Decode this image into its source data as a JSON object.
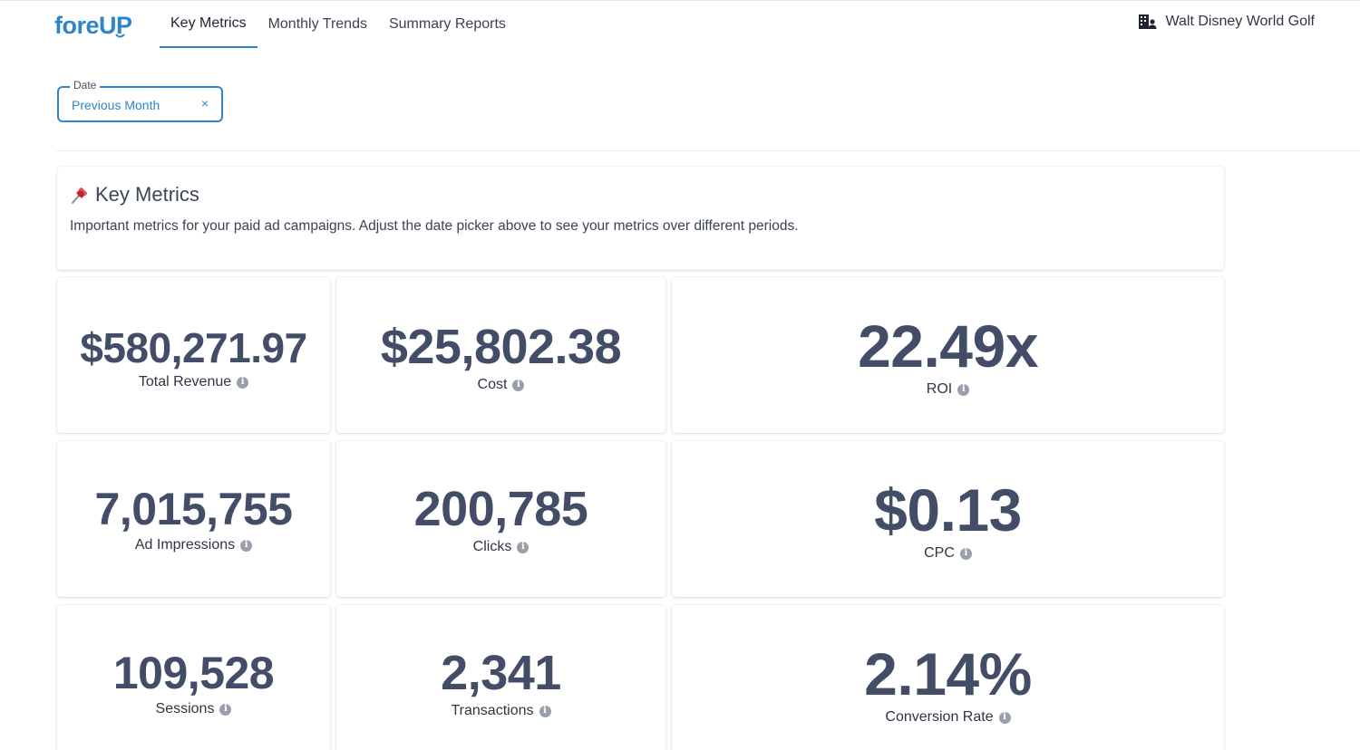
{
  "app": {
    "logo_text": "foreUP",
    "brand_color": "#2e86c8",
    "value_color": "#434d68"
  },
  "nav": {
    "tabs": [
      {
        "label": "Key Metrics",
        "active": true
      },
      {
        "label": "Monthly Trends",
        "active": false
      },
      {
        "label": "Summary Reports",
        "active": false
      }
    ]
  },
  "account": {
    "icon": "building-user-icon",
    "name": "Walt Disney World Golf"
  },
  "filters": {
    "date": {
      "label": "Date",
      "value": "Previous Month",
      "clear_icon": "×"
    }
  },
  "intro": {
    "icon": "pushpin-icon",
    "title": "Key Metrics",
    "description": "Important metrics for your paid ad campaigns. Adjust the date picker above to see your metrics over different periods."
  },
  "metrics": [
    {
      "value": "$580,271.97",
      "label": "Total Revenue"
    },
    {
      "value": "$25,802.38",
      "label": "Cost"
    },
    {
      "value": "22.49x",
      "label": "ROI"
    },
    {
      "value": "7,015,755",
      "label": "Ad Impressions"
    },
    {
      "value": "200,785",
      "label": "Clicks"
    },
    {
      "value": "$0.13",
      "label": "CPC"
    },
    {
      "value": "109,528",
      "label": "Sessions"
    },
    {
      "value": "2,341",
      "label": "Transactions"
    },
    {
      "value": "2.14%",
      "label": "Conversion Rate"
    }
  ]
}
